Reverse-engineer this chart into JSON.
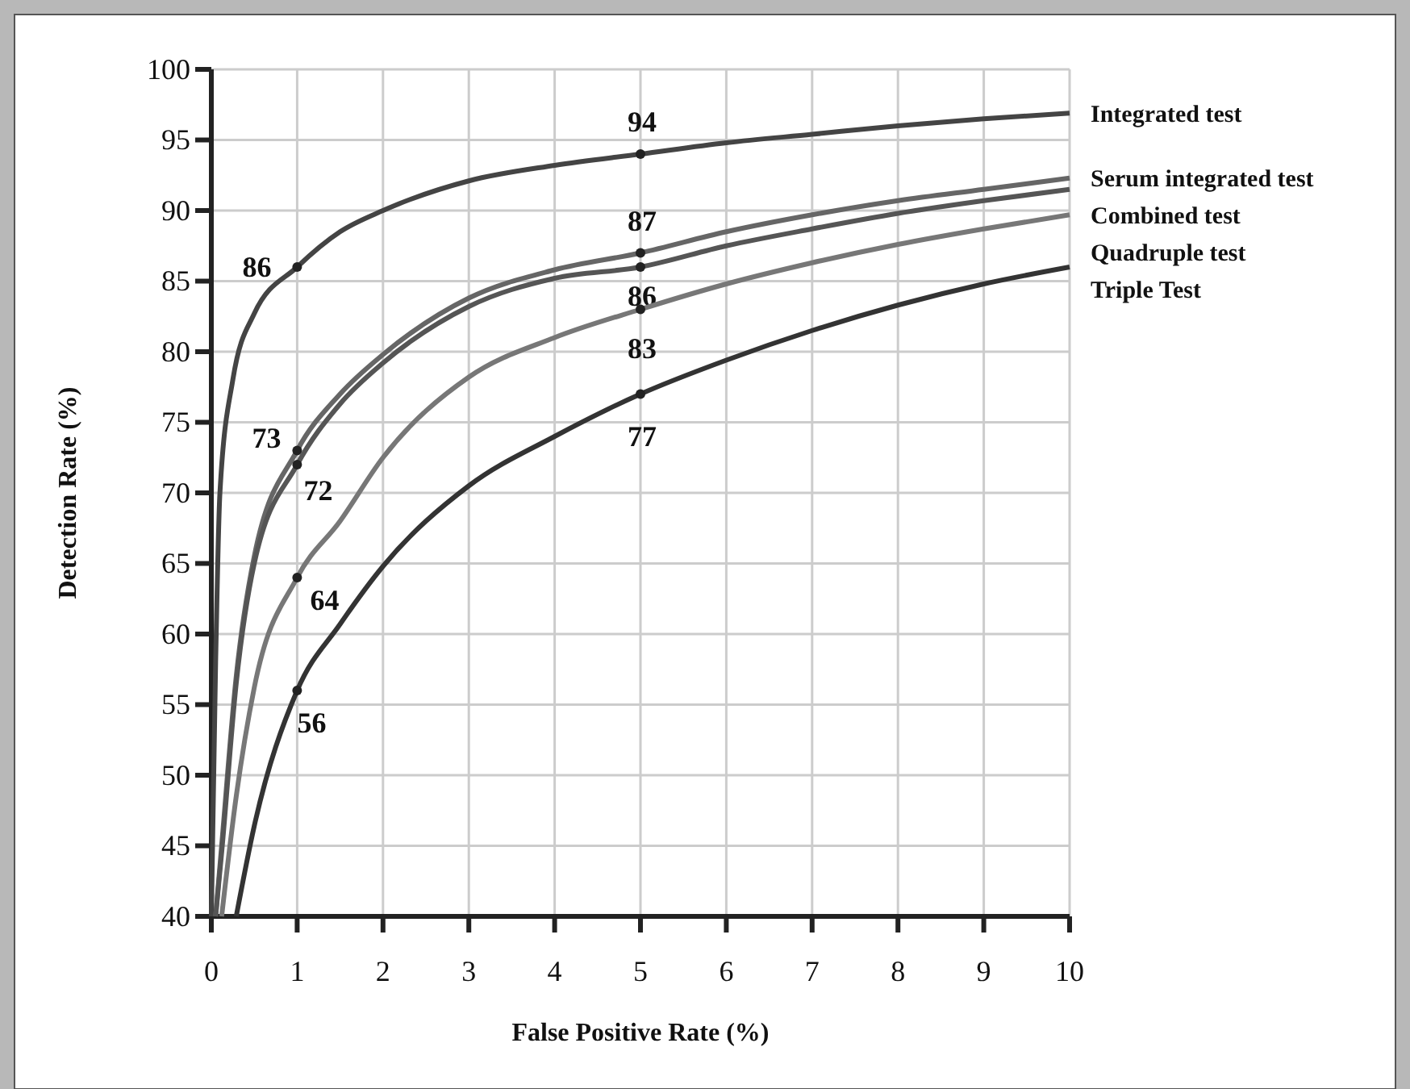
{
  "chart_data": {
    "type": "line",
    "xlabel": "False Positive Rate (%)",
    "ylabel": "Detection Rate (%)",
    "xlim": [
      0,
      10
    ],
    "ylim": [
      40,
      100
    ],
    "xticks": [
      0,
      1,
      2,
      3,
      4,
      5,
      6,
      7,
      8,
      9,
      10
    ],
    "yticks": [
      40,
      45,
      50,
      55,
      60,
      65,
      70,
      75,
      80,
      85,
      90,
      95,
      100
    ],
    "grid": true,
    "marker": "none",
    "line_style": "solid",
    "series": [
      {
        "name": "Integrated test",
        "color": "#444444",
        "x": [
          0,
          0.05,
          0.1,
          0.25,
          0.5,
          1,
          1.5,
          2,
          3,
          4,
          5,
          6,
          7,
          8,
          9,
          10
        ],
        "values": [
          40,
          58,
          70,
          78,
          82.7,
          86,
          88.5,
          90,
          92.1,
          93.2,
          94,
          94.8,
          95.4,
          96,
          96.5,
          96.9
        ],
        "value_labels": [
          null,
          null,
          null,
          null,
          null,
          "86",
          null,
          null,
          null,
          null,
          "94",
          null,
          null,
          null,
          null,
          null
        ]
      },
      {
        "name": "Serum integrated test",
        "color": "#666666",
        "x": [
          0.05,
          0.12,
          0.29,
          0.5,
          1,
          1.5,
          2,
          3,
          4,
          5,
          6,
          7,
          8,
          9,
          10
        ],
        "values": [
          40,
          45,
          57,
          65.5,
          73,
          77,
          79.8,
          83.8,
          85.8,
          87,
          88.5,
          89.7,
          90.7,
          91.5,
          92.3
        ],
        "value_labels": [
          null,
          null,
          null,
          null,
          "73",
          null,
          null,
          null,
          null,
          "87",
          null,
          null,
          null,
          null,
          null
        ]
      },
      {
        "name": "Combined test",
        "color": "#555555",
        "x": [
          0.05,
          0.12,
          0.29,
          0.5,
          1,
          1.5,
          2,
          3,
          4,
          5,
          6,
          7,
          8,
          9,
          10
        ],
        "values": [
          40,
          44.5,
          56.5,
          65,
          72,
          76.3,
          79.2,
          83.2,
          85.2,
          86,
          87.5,
          88.7,
          89.8,
          90.7,
          91.5
        ],
        "value_labels": [
          null,
          null,
          null,
          null,
          "72",
          null,
          null,
          null,
          null,
          "86",
          null,
          null,
          null,
          null,
          null
        ]
      },
      {
        "name": "Quadruple test",
        "color": "#777777",
        "x": [
          0.12,
          0.29,
          0.5,
          1,
          1.5,
          2,
          3,
          4,
          5,
          6,
          7,
          8,
          9,
          10
        ],
        "values": [
          40,
          48.5,
          56.2,
          64,
          68,
          72.5,
          78.2,
          81,
          83,
          84.8,
          86.3,
          87.6,
          88.7,
          89.7
        ],
        "value_labels": [
          null,
          null,
          null,
          "64",
          null,
          null,
          null,
          null,
          "83",
          null,
          null,
          null,
          null,
          null
        ]
      },
      {
        "name": "Triple Test",
        "color": "#333333",
        "x": [
          0.29,
          0.5,
          1,
          1.5,
          2,
          3,
          4,
          5,
          6,
          7,
          8,
          9,
          10
        ],
        "values": [
          40,
          46.4,
          56,
          60.7,
          64.8,
          70.5,
          74,
          77,
          79.4,
          81.5,
          83.3,
          84.8,
          86
        ],
        "value_labels": [
          null,
          null,
          "56",
          null,
          null,
          null,
          null,
          "77",
          null,
          null,
          null,
          null,
          null
        ]
      }
    ]
  }
}
